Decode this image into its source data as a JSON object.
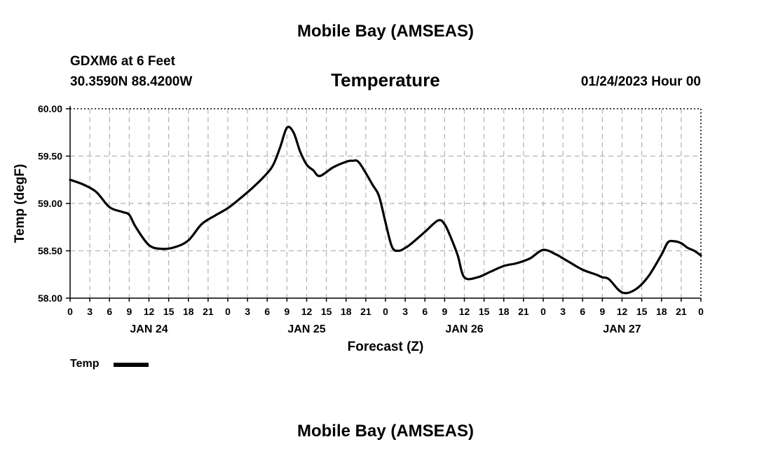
{
  "header": {
    "title": "Mobile Bay (AMSEAS)",
    "station_line": "GDXM6 at 6 Feet",
    "coords_line": "30.3590N  88.4200W",
    "datetime": "01/24/2023 Hour 00",
    "footer_title": "Mobile Bay (AMSEAS)"
  },
  "legend": {
    "label": "Temp"
  },
  "chart_data": {
    "type": "line",
    "title": "Temperature",
    "xlabel": "Forecast (Z)",
    "ylabel": "Temp (degF)",
    "x_unit": "forecast hour",
    "xlim": [
      0,
      96
    ],
    "ylim": [
      58.0,
      60.0
    ],
    "yticks": [
      58.0,
      58.5,
      59.0,
      59.5,
      60.0
    ],
    "ytick_labels": [
      "58.00",
      "58.50",
      "59.00",
      "59.50",
      "60.00"
    ],
    "xtick_labels": [
      "0",
      "3",
      "6",
      "9",
      "12",
      "15",
      "18",
      "21",
      "0",
      "3",
      "6",
      "9",
      "12",
      "15",
      "18",
      "21",
      "0",
      "3",
      "6",
      "9",
      "12",
      "15",
      "18",
      "21",
      "0",
      "3",
      "6",
      "9",
      "12",
      "15",
      "18",
      "21",
      "0"
    ],
    "day_labels": [
      {
        "hour": 12,
        "label": "JAN 24"
      },
      {
        "hour": 36,
        "label": "JAN 25"
      },
      {
        "hour": 60,
        "label": "JAN 26"
      },
      {
        "hour": 84,
        "label": "JAN 27"
      }
    ],
    "grid": true,
    "line_color": "#000000",
    "series": [
      {
        "name": "Temp",
        "x": [
          0,
          2,
          4,
          6,
          8,
          9,
          10,
          12,
          14,
          16,
          18,
          20,
          22,
          24,
          26,
          28,
          30,
          31,
          32,
          33,
          34,
          35,
          36,
          37,
          38,
          40,
          42,
          43,
          44,
          46,
          47,
          48,
          49,
          50,
          51,
          52,
          54,
          56,
          57,
          58,
          59,
          60,
          62,
          64,
          66,
          68,
          70,
          72,
          74,
          75,
          76,
          78,
          80,
          81,
          82,
          84,
          86,
          88,
          90,
          91,
          92,
          93,
          94,
          95,
          96
        ],
        "y": [
          59.25,
          59.2,
          59.12,
          58.96,
          58.91,
          58.88,
          58.75,
          58.56,
          58.52,
          58.54,
          58.61,
          58.78,
          58.87,
          58.95,
          59.06,
          59.18,
          59.32,
          59.42,
          59.6,
          59.8,
          59.75,
          59.55,
          59.41,
          59.35,
          59.29,
          59.38,
          59.44,
          59.45,
          59.43,
          59.2,
          59.08,
          58.8,
          58.54,
          58.5,
          58.53,
          58.58,
          58.7,
          58.82,
          58.78,
          58.63,
          58.45,
          58.22,
          58.22,
          58.28,
          58.34,
          58.37,
          58.42,
          58.51,
          58.46,
          58.42,
          58.38,
          58.3,
          58.25,
          58.22,
          58.2,
          58.06,
          58.09,
          58.23,
          58.46,
          58.59,
          58.6,
          58.58,
          58.53,
          58.5,
          58.45
        ]
      }
    ]
  }
}
